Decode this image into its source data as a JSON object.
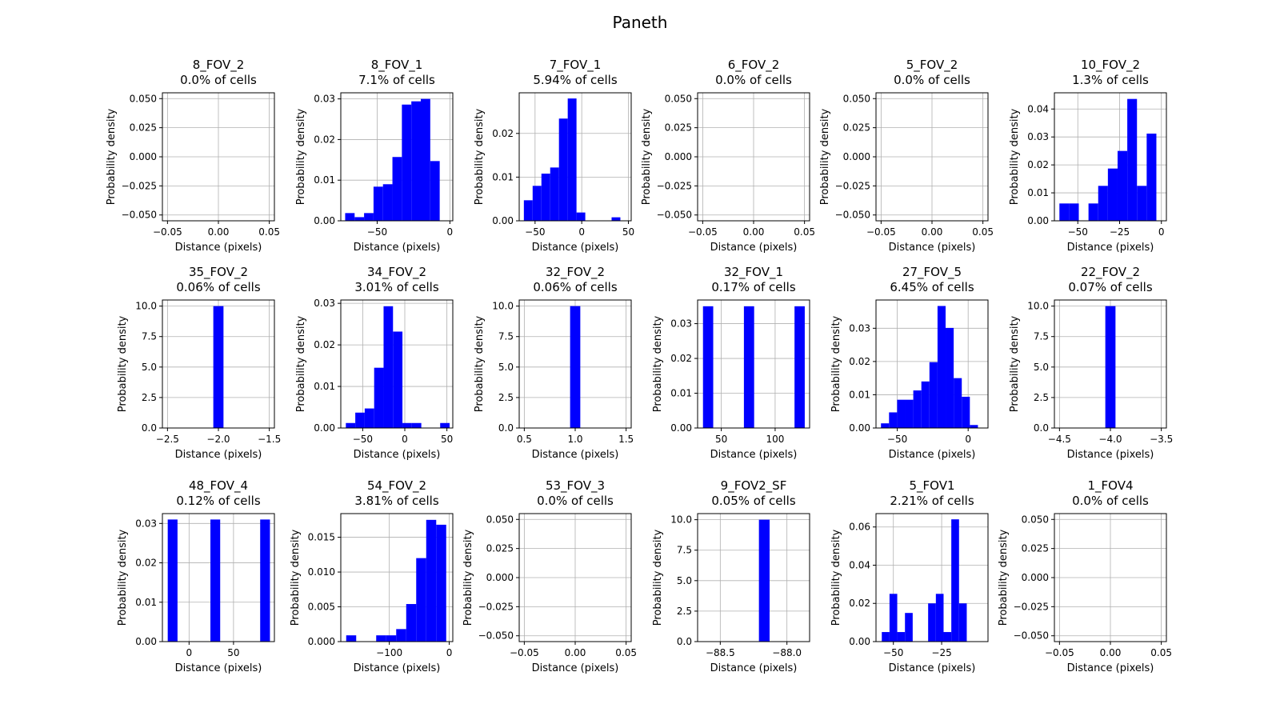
{
  "title": "Paneth",
  "chart_data": [
    {
      "type": "bar",
      "title": "8_FOV_2",
      "subtitle": "0.0% of cells",
      "xlabel": "Distance (pixels)",
      "ylabel": "Probability density",
      "xlim": [
        -0.055,
        0.055
      ],
      "ylim": [
        -0.055,
        0.055
      ],
      "xticks": [
        -0.05,
        0,
        0.05
      ],
      "xtick_labels": [
        "−0.05",
        "0.00",
        "0.05"
      ],
      "yticks": [
        -0.05,
        -0.025,
        0,
        0.025,
        0.05
      ],
      "ytick_labels": [
        "−0.050",
        "−0.025",
        "0.000",
        "0.025",
        "0.050"
      ],
      "bins": [],
      "color": "#0000ff",
      "grid": true
    },
    {
      "type": "bar",
      "title": "8_FOV_1",
      "subtitle": "7.1% of cells",
      "xlabel": "Distance (pixels)",
      "ylabel": "Probability density",
      "xlim": [
        -75,
        2
      ],
      "ylim": [
        0,
        0.0315
      ],
      "xticks": [
        -50,
        0
      ],
      "xtick_labels": [
        "−50",
        "0"
      ],
      "yticks": [
        0,
        0.01,
        0.02,
        0.03
      ],
      "ytick_labels": [
        "0.00",
        "0.01",
        "0.02",
        "0.03"
      ],
      "bins": [
        [
          -72,
          -65.5,
          0.0019
        ],
        [
          -65.5,
          -59,
          0.0009
        ],
        [
          -59,
          -52.5,
          0.0019
        ],
        [
          -52.5,
          -46,
          0.0084
        ],
        [
          -46,
          -39.5,
          0.009
        ],
        [
          -39.5,
          -33,
          0.0157
        ],
        [
          -33,
          -26.5,
          0.0286
        ],
        [
          -26.5,
          -20,
          0.0294
        ],
        [
          -20,
          -13.5,
          0.03
        ],
        [
          -13.5,
          -7,
          0.0147
        ]
      ],
      "color": "#0000ff",
      "grid": true
    },
    {
      "type": "bar",
      "title": "7_FOV_1",
      "subtitle": "5.94% of cells",
      "xlabel": "Distance (pixels)",
      "ylabel": "Probability density",
      "xlim": [
        -67,
        53
      ],
      "ylim": [
        0,
        0.0293
      ],
      "xticks": [
        -50,
        0,
        50
      ],
      "xtick_labels": [
        "−50",
        "0",
        "50"
      ],
      "yticks": [
        0,
        0.01,
        0.02
      ],
      "ytick_labels": [
        "0.00",
        "0.01",
        "0.02"
      ],
      "bins": [
        [
          -62,
          -52.6,
          0.0047
        ],
        [
          -52.6,
          -43.2,
          0.008
        ],
        [
          -43.2,
          -33.8,
          0.0108
        ],
        [
          -33.8,
          -24.4,
          0.0122
        ],
        [
          -24.4,
          -15,
          0.0234
        ],
        [
          -15,
          -5.6,
          0.028
        ],
        [
          -5.6,
          3.8,
          0.0019
        ],
        [
          3.8,
          13.2,
          0
        ],
        [
          13.2,
          22.6,
          0
        ],
        [
          22.6,
          32,
          0
        ],
        [
          32,
          41.4,
          0.0008
        ]
      ],
      "color": "#0000ff",
      "grid": true
    },
    {
      "type": "bar",
      "title": "6_FOV_2",
      "subtitle": "0.0% of cells",
      "xlabel": "Distance (pixels)",
      "ylabel": "Probability density",
      "xlim": [
        -0.055,
        0.055
      ],
      "ylim": [
        -0.055,
        0.055
      ],
      "xticks": [
        -0.05,
        0,
        0.05
      ],
      "xtick_labels": [
        "−0.05",
        "0.00",
        "0.05"
      ],
      "yticks": [
        -0.05,
        -0.025,
        0,
        0.025,
        0.05
      ],
      "ytick_labels": [
        "−0.050",
        "−0.025",
        "0.000",
        "0.025",
        "0.050"
      ],
      "bins": [],
      "color": "#0000ff",
      "grid": true
    },
    {
      "type": "bar",
      "title": "5_FOV_2",
      "subtitle": "0.0% of cells",
      "xlabel": "Distance (pixels)",
      "ylabel": "Probability density",
      "xlim": [
        -0.055,
        0.055
      ],
      "ylim": [
        -0.055,
        0.055
      ],
      "xticks": [
        -0.05,
        0,
        0.05
      ],
      "xtick_labels": [
        "−0.05",
        "0.00",
        "0.05"
      ],
      "yticks": [
        -0.05,
        -0.025,
        0,
        0.025,
        0.05
      ],
      "ytick_labels": [
        "−0.050",
        "−0.025",
        "0.000",
        "0.025",
        "0.050"
      ],
      "bins": [],
      "color": "#0000ff",
      "grid": true
    },
    {
      "type": "bar",
      "title": "10_FOV_2",
      "subtitle": "1.3% of cells",
      "xlabel": "Distance (pixels)",
      "ylabel": "Probability density",
      "xlim": [
        -64,
        3
      ],
      "ylim": [
        0,
        0.0458
      ],
      "xticks": [
        -50,
        -25,
        0
      ],
      "xtick_labels": [
        "−50",
        "−25",
        "0"
      ],
      "yticks": [
        0,
        0.01,
        0.02,
        0.03,
        0.04
      ],
      "ytick_labels": [
        "0.00",
        "0.01",
        "0.02",
        "0.03",
        "0.04"
      ],
      "bins": [
        [
          -61,
          -55.2,
          0.0062
        ],
        [
          -55.2,
          -49.4,
          0.0062
        ],
        [
          -49.4,
          -43.6,
          0
        ],
        [
          -43.6,
          -37.8,
          0.0062
        ],
        [
          -37.8,
          -32,
          0.0125
        ],
        [
          -32,
          -26.2,
          0.0187
        ],
        [
          -26.2,
          -20.4,
          0.025
        ],
        [
          -20.4,
          -14.6,
          0.0436
        ],
        [
          -14.6,
          -8.8,
          0.0125
        ],
        [
          -8.8,
          -3,
          0.0312
        ]
      ],
      "color": "#0000ff",
      "grid": true
    },
    {
      "type": "bar",
      "title": "35_FOV_2",
      "subtitle": "0.06% of cells",
      "xlabel": "Distance (pixels)",
      "ylabel": "Probability density",
      "xlim": [
        -2.55,
        -1.45
      ],
      "ylim": [
        0,
        10.5
      ],
      "xticks": [
        -2.5,
        -2,
        -1.5
      ],
      "xtick_labels": [
        "−2.5",
        "−2.0",
        "−1.5"
      ],
      "yticks": [
        0,
        2.5,
        5,
        7.5,
        10
      ],
      "ytick_labels": [
        "0.0",
        "2.5",
        "5.0",
        "7.5",
        "10.0"
      ],
      "bins": [
        [
          -2.05,
          -1.95,
          10
        ]
      ],
      "color": "#0000ff",
      "grid": true
    },
    {
      "type": "bar",
      "title": "34_FOV_2",
      "subtitle": "3.01% of cells",
      "xlabel": "Distance (pixels)",
      "ylabel": "Probability density",
      "xlim": [
        -76,
        57
      ],
      "ylim": [
        0,
        0.0308
      ],
      "xticks": [
        -50,
        0,
        50
      ],
      "xtick_labels": [
        "−50",
        "0",
        "50"
      ],
      "yticks": [
        0,
        0.01,
        0.02,
        0.03
      ],
      "ytick_labels": [
        "0.00",
        "0.01",
        "0.02",
        "0.03"
      ],
      "bins": [
        [
          -70,
          -58.8,
          0.0012
        ],
        [
          -58.8,
          -47.6,
          0.0037
        ],
        [
          -47.6,
          -36.4,
          0.0047
        ],
        [
          -36.4,
          -25.2,
          0.0145
        ],
        [
          -25.2,
          -14,
          0.0293
        ],
        [
          -14,
          -2.8,
          0.0232
        ],
        [
          -2.8,
          8.4,
          0.0012
        ],
        [
          8.4,
          19.6,
          0.0012
        ],
        [
          19.6,
          30.8,
          0
        ],
        [
          30.8,
          42,
          0
        ],
        [
          42,
          53.2,
          0.0012
        ]
      ],
      "color": "#0000ff",
      "grid": true
    },
    {
      "type": "bar",
      "title": "32_FOV_2",
      "subtitle": "0.06% of cells",
      "xlabel": "Distance (pixels)",
      "ylabel": "Probability density",
      "xlim": [
        0.45,
        1.55
      ],
      "ylim": [
        0,
        10.5
      ],
      "xticks": [
        0.5,
        1,
        1.5
      ],
      "xtick_labels": [
        "0.5",
        "1.0",
        "1.5"
      ],
      "yticks": [
        0,
        2.5,
        5,
        7.5,
        10
      ],
      "ytick_labels": [
        "0.0",
        "2.5",
        "5.0",
        "7.5",
        "10.0"
      ],
      "bins": [
        [
          0.95,
          1.05,
          10
        ]
      ],
      "color": "#0000ff",
      "grid": true
    },
    {
      "type": "bar",
      "title": "32_FOV_1",
      "subtitle": "0.17% of cells",
      "xlabel": "Distance (pixels)",
      "ylabel": "Probability density",
      "xlim": [
        28,
        132
      ],
      "ylim": [
        0,
        0.0368
      ],
      "xticks": [
        50,
        100
      ],
      "xtick_labels": [
        "50",
        "100"
      ],
      "yticks": [
        0,
        0.01,
        0.02,
        0.03
      ],
      "ytick_labels": [
        "0.00",
        "0.01",
        "0.02",
        "0.03"
      ],
      "bins": [
        [
          33,
          42.5,
          0.035
        ],
        [
          71,
          80.5,
          0.035
        ],
        [
          118,
          127.5,
          0.035
        ]
      ],
      "color": "#0000ff",
      "grid": true
    },
    {
      "type": "bar",
      "title": "27_FOV_5",
      "subtitle": "6.45% of cells",
      "xlabel": "Distance (pixels)",
      "ylabel": "Probability density",
      "xlim": [
        -65,
        14
      ],
      "ylim": [
        0,
        0.0385
      ],
      "xticks": [
        -50,
        0
      ],
      "xtick_labels": [
        "−50",
        "0"
      ],
      "yticks": [
        0,
        0.01,
        0.02,
        0.03
      ],
      "ytick_labels": [
        "0.00",
        "0.01",
        "0.02",
        "0.03"
      ],
      "bins": [
        [
          -61.5,
          -55.8,
          0.0014
        ],
        [
          -55.8,
          -50.1,
          0.0047
        ],
        [
          -50.1,
          -44.4,
          0.0085
        ],
        [
          -44.4,
          -38.7,
          0.0085
        ],
        [
          -38.7,
          -33,
          0.0113
        ],
        [
          -33,
          -27.3,
          0.014
        ],
        [
          -27.3,
          -21.6,
          0.0198
        ],
        [
          -21.6,
          -15.9,
          0.0367
        ],
        [
          -15.9,
          -10.2,
          0.0301
        ],
        [
          -10.2,
          -4.5,
          0.015
        ],
        [
          -4.5,
          1.2,
          0.0094
        ],
        [
          1.2,
          6.9,
          0.0009
        ]
      ],
      "color": "#0000ff",
      "grid": true
    },
    {
      "type": "bar",
      "title": "22_FOV_2",
      "subtitle": "0.07% of cells",
      "xlabel": "Distance (pixels)",
      "ylabel": "Probability density",
      "xlim": [
        -4.55,
        -3.45
      ],
      "ylim": [
        0,
        10.5
      ],
      "xticks": [
        -4.5,
        -4,
        -3.5
      ],
      "xtick_labels": [
        "−4.5",
        "−4.0",
        "−3.5"
      ],
      "yticks": [
        0,
        2.5,
        5,
        7.5,
        10
      ],
      "ytick_labels": [
        "0.0",
        "2.5",
        "5.0",
        "7.5",
        "10.0"
      ],
      "bins": [
        [
          -4.05,
          -3.95,
          10
        ]
      ],
      "color": "#0000ff",
      "grid": true
    },
    {
      "type": "bar",
      "title": "48_FOV_4",
      "subtitle": "0.12% of cells",
      "xlabel": "Distance (pixels)",
      "ylabel": "Probability density",
      "xlim": [
        -30,
        96
      ],
      "ylim": [
        0,
        0.0325
      ],
      "xticks": [
        0,
        50
      ],
      "xtick_labels": [
        "0",
        "50"
      ],
      "yticks": [
        0,
        0.01,
        0.02,
        0.03
      ],
      "ytick_labels": [
        "0.00",
        "0.01",
        "0.02",
        "0.03"
      ],
      "bins": [
        [
          -24,
          -13,
          0.031
        ],
        [
          24,
          35,
          0.031
        ],
        [
          80,
          91,
          0.031
        ]
      ],
      "color": "#0000ff",
      "grid": true
    },
    {
      "type": "bar",
      "title": "54_FOV_2",
      "subtitle": "3.81% of cells",
      "xlabel": "Distance (pixels)",
      "ylabel": "Probability density",
      "xlim": [
        -181,
        6
      ],
      "ylim": [
        0,
        0.0184
      ],
      "xticks": [
        -100,
        0
      ],
      "xtick_labels": [
        "−100",
        "0"
      ],
      "yticks": [
        0,
        0.005,
        0.01,
        0.015
      ],
      "ytick_labels": [
        "0.000",
        "0.005",
        "0.010",
        "0.015"
      ],
      "bins": [
        [
          -172,
          -155.3,
          0.0009
        ],
        [
          -155.3,
          -138.6,
          0
        ],
        [
          -138.6,
          -121.9,
          0
        ],
        [
          -121.9,
          -105.2,
          0.0009
        ],
        [
          -105.2,
          -88.5,
          0.0009
        ],
        [
          -88.5,
          -71.8,
          0.0018
        ],
        [
          -71.8,
          -55.1,
          0.0054
        ],
        [
          -55.1,
          -38.4,
          0.012
        ],
        [
          -38.4,
          -21.7,
          0.0175
        ],
        [
          -21.7,
          -5,
          0.0168
        ]
      ],
      "color": "#0000ff",
      "grid": true
    },
    {
      "type": "bar",
      "title": "53_FOV_3",
      "subtitle": "0.0% of cells",
      "xlabel": "Distance (pixels)",
      "ylabel": "Probability density",
      "xlim": [
        -0.055,
        0.055
      ],
      "ylim": [
        -0.055,
        0.055
      ],
      "xticks": [
        -0.05,
        0,
        0.05
      ],
      "xtick_labels": [
        "−0.05",
        "0.00",
        "0.05"
      ],
      "yticks": [
        -0.05,
        -0.025,
        0,
        0.025,
        0.05
      ],
      "ytick_labels": [
        "−0.050",
        "−0.025",
        "0.000",
        "0.025",
        "0.050"
      ],
      "bins": [],
      "color": "#0000ff",
      "grid": true
    },
    {
      "type": "bar",
      "title": "9_FOV2_SF",
      "subtitle": "0.05% of cells",
      "xlabel": "Distance (pixels)",
      "ylabel": "Probability density",
      "xlim": [
        -88.67,
        -87.83
      ],
      "ylim": [
        0,
        10.5
      ],
      "xticks": [
        -88.5,
        -88
      ],
      "xtick_labels": [
        "−88.5",
        "−88.0"
      ],
      "yticks": [
        0,
        2.5,
        5,
        7.5,
        10
      ],
      "ytick_labels": [
        "0.0",
        "2.5",
        "5.0",
        "7.5",
        "10.0"
      ],
      "bins": [
        [
          -88.21,
          -88.13,
          10
        ]
      ],
      "color": "#0000ff",
      "grid": true
    },
    {
      "type": "bar",
      "title": "5_FOV1",
      "subtitle": "2.21% of cells",
      "xlabel": "Distance (pixels)",
      "ylabel": "Probability density",
      "xlim": [
        -59,
        -1
      ],
      "ylim": [
        0,
        0.067
      ],
      "xticks": [
        -50,
        -25
      ],
      "xtick_labels": [
        "−50",
        "−25"
      ],
      "yticks": [
        0,
        0.02,
        0.04,
        0.06
      ],
      "ytick_labels": [
        "0.00",
        "0.02",
        "0.04",
        "0.06"
      ],
      "bins": [
        [
          -56,
          -52,
          0.005
        ],
        [
          -52,
          -48,
          0.025
        ],
        [
          -48,
          -44,
          0.005
        ],
        [
          -44,
          -40,
          0.015
        ],
        [
          -40,
          -36,
          0
        ],
        [
          -36,
          -32,
          0
        ],
        [
          -32,
          -28,
          0.02
        ],
        [
          -28,
          -24,
          0.025
        ],
        [
          -24,
          -20,
          0.005
        ],
        [
          -20,
          -16,
          0.064
        ],
        [
          -16,
          -12,
          0.02
        ]
      ],
      "color": "#0000ff",
      "grid": true
    },
    {
      "type": "bar",
      "title": "1_FOV4",
      "subtitle": "0.0% of cells",
      "xlabel": "Distance (pixels)",
      "ylabel": "Probability density",
      "xlim": [
        -0.055,
        0.055
      ],
      "ylim": [
        -0.055,
        0.055
      ],
      "xticks": [
        -0.05,
        0,
        0.05
      ],
      "xtick_labels": [
        "−0.05",
        "0.00",
        "0.05"
      ],
      "yticks": [
        -0.05,
        -0.025,
        0,
        0.025,
        0.05
      ],
      "ytick_labels": [
        "−0.050",
        "−0.025",
        "0.000",
        "0.025",
        "0.050"
      ],
      "bins": [],
      "color": "#0000ff",
      "grid": true
    }
  ]
}
